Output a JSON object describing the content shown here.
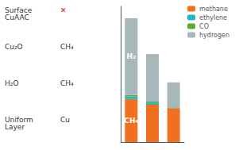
{
  "chart_data": {
    "type": "bar",
    "stacked": true,
    "categories": [
      null,
      null,
      null
    ],
    "series": [
      {
        "name": "methane",
        "color": "#f07020",
        "values": [
          38,
          33,
          30
        ]
      },
      {
        "name": "ethylene",
        "color": "#20b8c8",
        "values": [
          2.5,
          2.0,
          0.5
        ]
      },
      {
        "name": "CO",
        "color": "#60a830",
        "values": [
          1.0,
          0.8,
          0.3
        ]
      },
      {
        "name": "hydrogen",
        "color": "#a8b8b8",
        "values": [
          68,
          42,
          22
        ]
      }
    ],
    "ylim": [
      0,
      120
    ],
    "tick_labels": false,
    "grid": false,
    "legend": "upper right",
    "annotations": [
      {
        "text": "CH₄",
        "series": "methane",
        "point": 0
      },
      {
        "text": "H₂",
        "series": "hydrogen",
        "point": 0
      },
      {
        "text": "Surface\nCuAAC"
      },
      {
        "text": "✕"
      },
      {
        "text": "Cu₂O"
      },
      {
        "text": "CH₄"
      },
      {
        "text": "H₂O"
      },
      {
        "text": "CH₄"
      },
      {
        "text": "Uniform\nLayer"
      },
      {
        "text": "Cu"
      }
    ]
  }
}
